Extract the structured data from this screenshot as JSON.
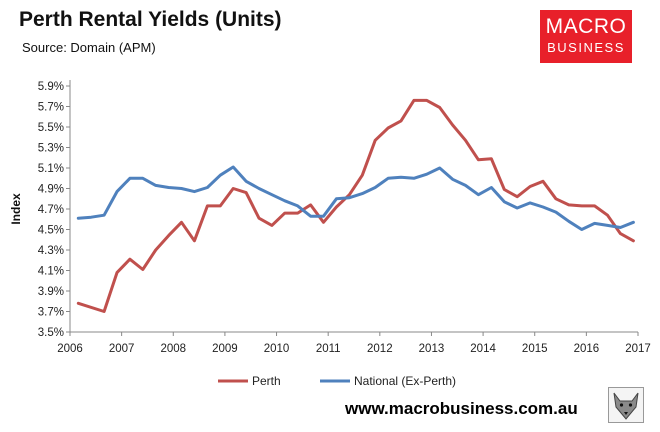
{
  "header": {
    "title": "Perth Rental Yields (Units)",
    "subtitle": "Source: Domain (APM)"
  },
  "logo": {
    "line1": "MACRO",
    "line2": "BUSINESS",
    "color": "#e8202a"
  },
  "footer": {
    "url": "www.macrobusiness.com.au"
  },
  "chart_data": {
    "type": "line",
    "title": "Perth Rental Yields (Units)",
    "subtitle": "Source: Domain (APM)",
    "xlabel": "",
    "ylabel": "Index",
    "xlim": [
      2006,
      2017
    ],
    "ylim": [
      3.5,
      5.9
    ],
    "x_ticks": [
      "2006",
      "2007",
      "2008",
      "2009",
      "2010",
      "2011",
      "2012",
      "2013",
      "2014",
      "2015",
      "2016",
      "2017"
    ],
    "y_ticks": [
      "3.5%",
      "3.7%",
      "3.9%",
      "4.1%",
      "4.3%",
      "4.5%",
      "4.7%",
      "4.9%",
      "5.1%",
      "5.3%",
      "5.5%",
      "5.7%",
      "5.9%"
    ],
    "grid": false,
    "legend": "bottom",
    "series": [
      {
        "name": "Perth",
        "color": "#c0504d",
        "points": [
          [
            2006.16,
            3.78
          ],
          [
            2006.66,
            3.7
          ],
          [
            2006.91,
            4.08
          ],
          [
            2007.16,
            4.21
          ],
          [
            2007.41,
            4.11
          ],
          [
            2007.66,
            4.3
          ],
          [
            2007.91,
            4.44
          ],
          [
            2008.16,
            4.57
          ],
          [
            2008.41,
            4.39
          ],
          [
            2008.66,
            4.73
          ],
          [
            2008.91,
            4.73
          ],
          [
            2009.16,
            4.9
          ],
          [
            2009.41,
            4.86
          ],
          [
            2009.66,
            4.61
          ],
          [
            2009.91,
            4.54
          ],
          [
            2010.16,
            4.66
          ],
          [
            2010.41,
            4.66
          ],
          [
            2010.66,
            4.74
          ],
          [
            2010.91,
            4.57
          ],
          [
            2011.16,
            4.72
          ],
          [
            2011.41,
            4.84
          ],
          [
            2011.66,
            5.03
          ],
          [
            2011.91,
            5.37
          ],
          [
            2012.16,
            5.49
          ],
          [
            2012.41,
            5.56
          ],
          [
            2012.66,
            5.76
          ],
          [
            2012.91,
            5.76
          ],
          [
            2013.16,
            5.69
          ],
          [
            2013.41,
            5.52
          ],
          [
            2013.66,
            5.37
          ],
          [
            2013.91,
            5.18
          ],
          [
            2014.16,
            5.19
          ],
          [
            2014.41,
            4.89
          ],
          [
            2014.66,
            4.82
          ],
          [
            2014.91,
            4.92
          ],
          [
            2015.16,
            4.97
          ],
          [
            2015.41,
            4.8
          ],
          [
            2015.66,
            4.74
          ],
          [
            2015.91,
            4.73
          ],
          [
            2016.16,
            4.73
          ],
          [
            2016.41,
            4.64
          ],
          [
            2016.66,
            4.46
          ],
          [
            2016.91,
            4.39
          ]
        ]
      },
      {
        "name": "National (Ex-Perth)",
        "color": "#4f81bd",
        "points": [
          [
            2006.16,
            4.61
          ],
          [
            2006.41,
            4.62
          ],
          [
            2006.66,
            4.64
          ],
          [
            2006.91,
            4.87
          ],
          [
            2007.16,
            5.0
          ],
          [
            2007.41,
            5.0
          ],
          [
            2007.66,
            4.93
          ],
          [
            2007.91,
            4.91
          ],
          [
            2008.16,
            4.9
          ],
          [
            2008.41,
            4.87
          ],
          [
            2008.66,
            4.91
          ],
          [
            2008.91,
            5.03
          ],
          [
            2009.16,
            5.11
          ],
          [
            2009.41,
            4.97
          ],
          [
            2009.66,
            4.9
          ],
          [
            2009.91,
            4.84
          ],
          [
            2010.16,
            4.78
          ],
          [
            2010.41,
            4.73
          ],
          [
            2010.66,
            4.63
          ],
          [
            2010.91,
            4.63
          ],
          [
            2011.16,
            4.8
          ],
          [
            2011.41,
            4.81
          ],
          [
            2011.66,
            4.85
          ],
          [
            2011.91,
            4.91
          ],
          [
            2012.16,
            5.0
          ],
          [
            2012.41,
            5.01
          ],
          [
            2012.66,
            5.0
          ],
          [
            2012.91,
            5.04
          ],
          [
            2013.16,
            5.1
          ],
          [
            2013.41,
            4.99
          ],
          [
            2013.66,
            4.93
          ],
          [
            2013.91,
            4.84
          ],
          [
            2014.16,
            4.91
          ],
          [
            2014.41,
            4.77
          ],
          [
            2014.66,
            4.71
          ],
          [
            2014.91,
            4.76
          ],
          [
            2015.16,
            4.72
          ],
          [
            2015.41,
            4.67
          ],
          [
            2015.66,
            4.58
          ],
          [
            2015.91,
            4.5
          ],
          [
            2016.16,
            4.56
          ],
          [
            2016.41,
            4.54
          ],
          [
            2016.66,
            4.52
          ],
          [
            2016.91,
            4.57
          ]
        ]
      }
    ]
  }
}
